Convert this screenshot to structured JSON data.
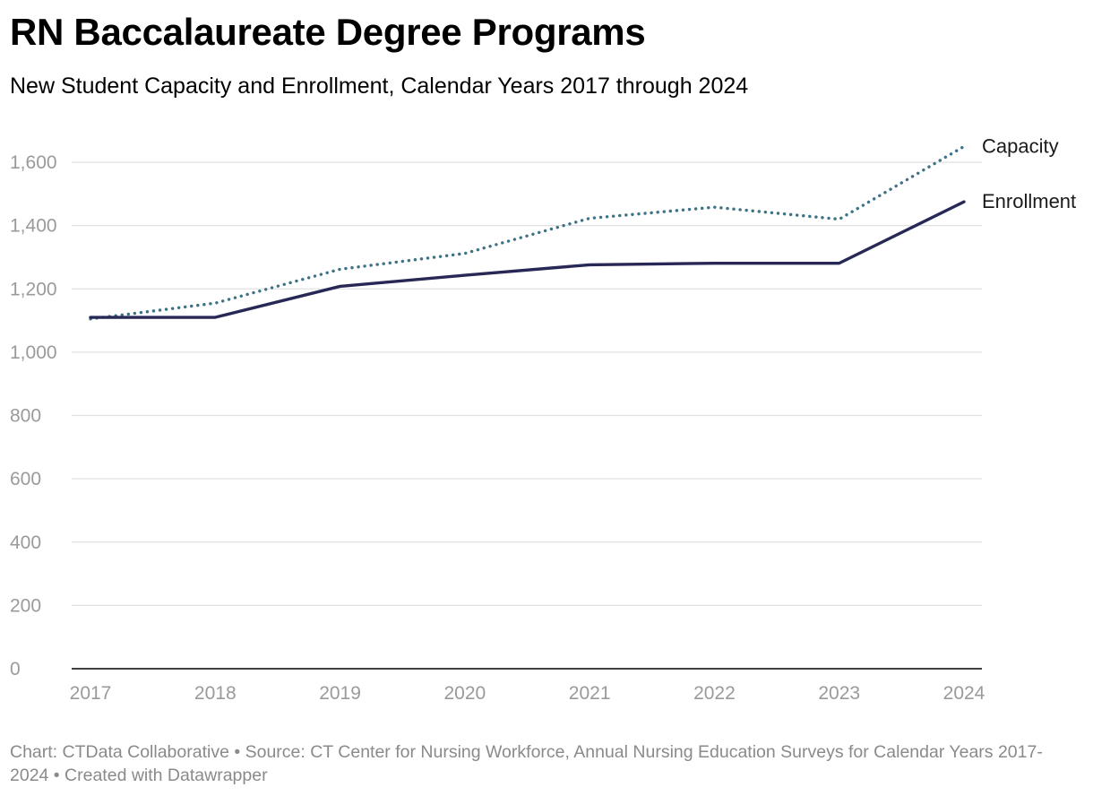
{
  "chart_data": {
    "type": "line",
    "title": "RN Baccalaureate Degree Programs",
    "subtitle": "New Student Capacity and Enrollment, Calendar Years 2017 through 2024",
    "x": [
      "2017",
      "2018",
      "2019",
      "2020",
      "2021",
      "2022",
      "2023",
      "2024"
    ],
    "yticks": [
      0,
      200,
      400,
      600,
      800,
      1000,
      1200,
      1400,
      1600
    ],
    "ytick_labels": [
      "0",
      "200",
      "400",
      "600",
      "800",
      "1,000",
      "1,200",
      "1,400",
      "1,600"
    ],
    "ylim": [
      0,
      1650
    ],
    "grid": true,
    "legend": "inline-right",
    "series": [
      {
        "name": "Capacity",
        "values": [
          1105,
          1155,
          1262,
          1312,
          1423,
          1458,
          1420,
          1650
        ],
        "color": "#3d7287",
        "style": "dotted"
      },
      {
        "name": "Enrollment",
        "values": [
          1110,
          1110,
          1208,
          1243,
          1276,
          1281,
          1281,
          1475
        ],
        "color": "#282856",
        "style": "solid"
      }
    ]
  },
  "footer": {
    "text": "Chart: CTData Collaborative • Source: CT Center for Nursing Workforce, Annual Nursing Education Surveys for Calendar Years 2017-2024 • Created with Datawrapper"
  },
  "colors": {
    "grid": "#e0e0e0",
    "axis": "#000000",
    "tick_text": "#9a9a9a",
    "footer_text": "#8a8a8a"
  }
}
